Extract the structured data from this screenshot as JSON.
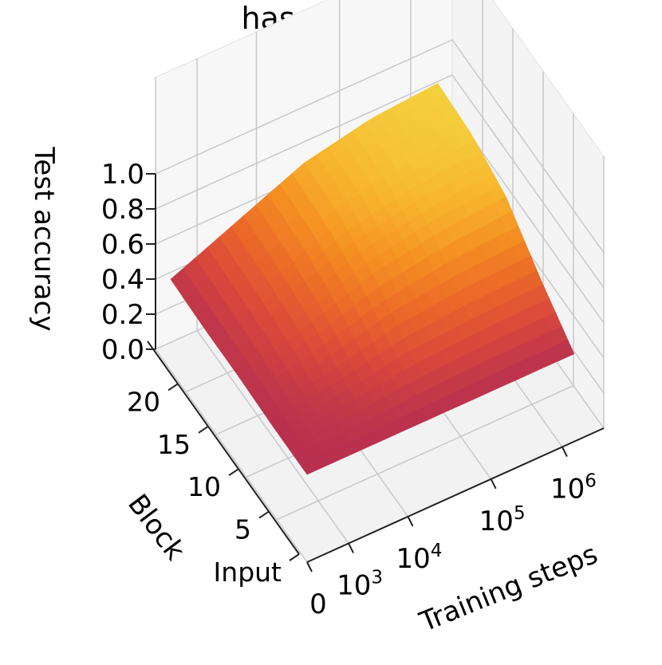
{
  "chart_data": {
    "type": "surface3d",
    "title": "has_mate_threat",
    "xlabel": "Training steps",
    "ylabel": "Block",
    "zlabel": "Test accuracy",
    "x_ticks": [
      {
        "value": 0,
        "base": "0",
        "exp": ""
      },
      {
        "value": 1000,
        "base": "10",
        "exp": "3"
      },
      {
        "value": 10000,
        "base": "10",
        "exp": "4"
      },
      {
        "value": 100000,
        "base": "10",
        "exp": "5"
      },
      {
        "value": 1000000,
        "base": "10",
        "exp": "6"
      }
    ],
    "y_ticks": [
      "Input",
      "5",
      "10",
      "15",
      "20"
    ],
    "z_ticks": [
      "0.0",
      "0.2",
      "0.4",
      "0.6",
      "0.8",
      "1.0"
    ],
    "zlim": [
      0,
      1
    ],
    "colormap": [
      "#b8304f",
      "#d9483b",
      "#ec6a28",
      "#f59022",
      "#f7b62e",
      "#f4d03f"
    ],
    "surface": {
      "x_steps": [
        "0",
        "1e3",
        "1e4",
        "1e5",
        "1e6"
      ],
      "blocks": [
        "Input",
        "5",
        "10",
        "15",
        "20"
      ],
      "accuracy": [
        [
          0.5,
          0.5,
          0.5,
          0.5,
          0.5
        ],
        [
          0.5,
          0.55,
          0.62,
          0.65,
          0.66
        ],
        [
          0.51,
          0.62,
          0.75,
          0.82,
          0.85
        ],
        [
          0.51,
          0.66,
          0.82,
          0.9,
          0.93
        ],
        [
          0.52,
          0.68,
          0.84,
          0.92,
          0.95
        ]
      ]
    }
  }
}
